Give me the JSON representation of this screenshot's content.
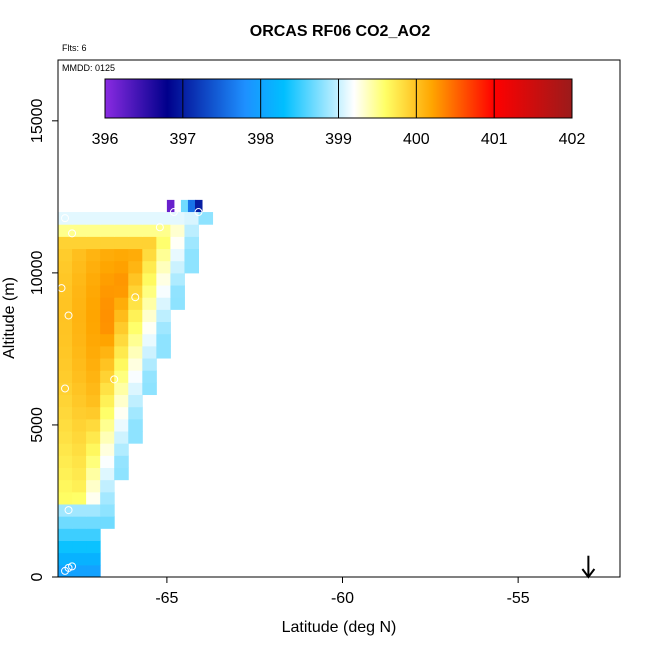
{
  "chart_data": {
    "type": "heatmap",
    "title": "ORCAS RF06 CO2_AO2",
    "annotations": [
      "Flts: 6",
      "MMDD: 0125"
    ],
    "xlabel": "Latitude (deg N)",
    "ylabel": "Altitude (m)",
    "xlim": [
      -68.1,
      -52.1
    ],
    "ylim": [
      0,
      17000
    ],
    "xticks": [
      -65,
      -60,
      -55
    ],
    "xtick_labels": [
      "-65",
      "-60",
      "-55"
    ],
    "yticks": [
      0,
      5000,
      10000,
      15000
    ],
    "ytick_labels": [
      "0",
      "5000",
      "10000",
      "15000"
    ],
    "colorbar": {
      "min": 396,
      "max": 402,
      "ticks": [
        396,
        397,
        398,
        399,
        400,
        401,
        402
      ],
      "tick_labels": [
        "396",
        "397",
        "398",
        "399",
        "400",
        "401",
        "402"
      ],
      "colors": [
        "#8a2be2",
        "#00008b",
        "#1e90ff",
        "#00bfff",
        "#ffffff",
        "#ffff66",
        "#ffa500",
        "#ff0000",
        "#9b1b1b"
      ],
      "stops": [
        396,
        396.8,
        397.8,
        398.3,
        399.2,
        399.6,
        400.2,
        401.0,
        402.0
      ]
    },
    "cell_width_deg": 0.4,
    "cell_height_m": 400,
    "cells": {
      "lat_start": -68.1,
      "alt_start": 0,
      "edge_lat_at_alt0": -67.35,
      "edge_lat_at_alt12000": -63.95,
      "top_alt": 12000,
      "core": {
        "lat": -66.3,
        "alt": 8600,
        "value": 400.5
      }
    },
    "top_strip": [
      {
        "lat": -65.0,
        "value": 396.2
      },
      {
        "lat": -64.6,
        "value": 398.7
      },
      {
        "lat": -64.4,
        "value": 397.6
      },
      {
        "lat": -64.2,
        "value": 397.0
      }
    ],
    "observations": [
      {
        "lat": -67.9,
        "alt": 11800
      },
      {
        "lat": -67.7,
        "alt": 11300
      },
      {
        "lat": -65.2,
        "alt": 11500
      },
      {
        "lat": -64.8,
        "alt": 12000
      },
      {
        "lat": -64.1,
        "alt": 12000
      },
      {
        "lat": -68.0,
        "alt": 9500
      },
      {
        "lat": -65.9,
        "alt": 9200
      },
      {
        "lat": -67.8,
        "alt": 8600
      },
      {
        "lat": -66.5,
        "alt": 6500
      },
      {
        "lat": -67.9,
        "alt": 6200
      },
      {
        "lat": -67.8,
        "alt": 2200
      },
      {
        "lat": -67.8,
        "alt": 300
      },
      {
        "lat": -67.7,
        "alt": 350
      },
      {
        "lat": -67.9,
        "alt": 200
      }
    ],
    "arrow": {
      "lat": -53.0,
      "alt_from": 700,
      "alt_to": 0
    }
  }
}
